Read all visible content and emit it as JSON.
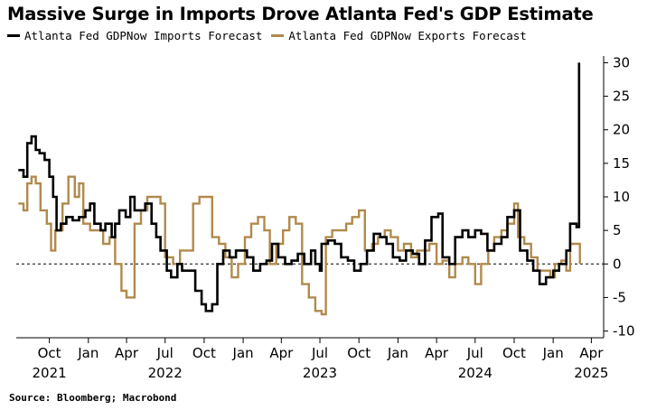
{
  "title": "Massive Surge in Imports Drove Atlanta Fed's GDP Estimate",
  "source": "Source: Bloomberg; Macrobond",
  "chart_data": {
    "type": "line",
    "title": "Massive Surge in Imports Drove Atlanta Fed's GDP Estimate",
    "xlabel": "",
    "ylabel": "",
    "xlim": [
      "2021-07-15",
      "2025-04-30"
    ],
    "ylim": [
      -11,
      31
    ],
    "yticks": [
      30,
      25,
      20,
      15,
      10,
      5,
      0,
      -5,
      -10
    ],
    "ytick_labels": [
      "30",
      "25",
      "20",
      "15",
      "10",
      "5",
      "0",
      "-5",
      "-10"
    ],
    "xticks": [
      {
        "date": "2021-10-01",
        "label": "Oct",
        "year": "2021"
      },
      {
        "date": "2022-01-01",
        "label": "Jan",
        "year": ""
      },
      {
        "date": "2022-04-01",
        "label": "Apr",
        "year": ""
      },
      {
        "date": "2022-07-01",
        "label": "Jul",
        "year": "2022"
      },
      {
        "date": "2022-10-01",
        "label": "Oct",
        "year": ""
      },
      {
        "date": "2023-01-01",
        "label": "Jan",
        "year": ""
      },
      {
        "date": "2023-04-01",
        "label": "Apr",
        "year": ""
      },
      {
        "date": "2023-07-01",
        "label": "Jul",
        "year": "2023"
      },
      {
        "date": "2023-10-01",
        "label": "Oct",
        "year": ""
      },
      {
        "date": "2024-01-01",
        "label": "Jan",
        "year": ""
      },
      {
        "date": "2024-04-01",
        "label": "Apr",
        "year": ""
      },
      {
        "date": "2024-07-01",
        "label": "Jul",
        "year": "2024"
      },
      {
        "date": "2024-10-01",
        "label": "Oct",
        "year": ""
      },
      {
        "date": "2025-01-01",
        "label": "Jan",
        "year": ""
      },
      {
        "date": "2025-04-01",
        "label": "Apr",
        "year": "2025"
      }
    ],
    "reference_line": {
      "y": 0,
      "style": "dashed"
    },
    "axis_side": "right",
    "series": [
      {
        "name": "Atlanta Fed GDPNow Imports Forecast",
        "color": "#000000",
        "points": [
          [
            "2021-07-20",
            14
          ],
          [
            "2021-08-01",
            13
          ],
          [
            "2021-08-10",
            18
          ],
          [
            "2021-08-20",
            19
          ],
          [
            "2021-08-30",
            17
          ],
          [
            "2021-09-08",
            16.5
          ],
          [
            "2021-09-20",
            15.5
          ],
          [
            "2021-10-01",
            13
          ],
          [
            "2021-10-10",
            10
          ],
          [
            "2021-10-18",
            5
          ],
          [
            "2021-10-28",
            6
          ],
          [
            "2021-11-10",
            7
          ],
          [
            "2021-11-25",
            6.5
          ],
          [
            "2021-12-10",
            7
          ],
          [
            "2021-12-25",
            8
          ],
          [
            "2022-01-05",
            9
          ],
          [
            "2022-01-15",
            6
          ],
          [
            "2022-01-30",
            5
          ],
          [
            "2022-02-10",
            6
          ],
          [
            "2022-02-25",
            4
          ],
          [
            "2022-03-05",
            6
          ],
          [
            "2022-03-15",
            8
          ],
          [
            "2022-03-30",
            7
          ],
          [
            "2022-04-10",
            10
          ],
          [
            "2022-04-20",
            8
          ],
          [
            "2022-05-01",
            8
          ],
          [
            "2022-05-15",
            9
          ],
          [
            "2022-05-30",
            6
          ],
          [
            "2022-06-10",
            4
          ],
          [
            "2022-06-20",
            2
          ],
          [
            "2022-06-30",
            2
          ],
          [
            "2022-07-05",
            -1
          ],
          [
            "2022-07-15",
            -2
          ],
          [
            "2022-07-30",
            0
          ],
          [
            "2022-08-10",
            -1
          ],
          [
            "2022-08-25",
            -1
          ],
          [
            "2022-09-10",
            -4
          ],
          [
            "2022-09-25",
            -6
          ],
          [
            "2022-10-05",
            -7
          ],
          [
            "2022-10-20",
            -6
          ],
          [
            "2022-11-01",
            0
          ],
          [
            "2022-11-15",
            2
          ],
          [
            "2022-11-30",
            1
          ],
          [
            "2022-12-15",
            2
          ],
          [
            "2022-12-31",
            2
          ],
          [
            "2023-01-10",
            1
          ],
          [
            "2023-01-25",
            -1
          ],
          [
            "2023-02-10",
            0
          ],
          [
            "2023-02-25",
            0.5
          ],
          [
            "2023-03-10",
            3
          ],
          [
            "2023-03-25",
            1
          ],
          [
            "2023-04-10",
            0
          ],
          [
            "2023-04-25",
            0.5
          ],
          [
            "2023-05-10",
            1.5
          ],
          [
            "2023-05-25",
            0
          ],
          [
            "2023-06-10",
            2
          ],
          [
            "2023-06-20",
            0
          ],
          [
            "2023-07-01",
            -1
          ],
          [
            "2023-07-05",
            3
          ],
          [
            "2023-07-20",
            3.5
          ],
          [
            "2023-08-05",
            3
          ],
          [
            "2023-08-20",
            1
          ],
          [
            "2023-09-05",
            0.5
          ],
          [
            "2023-09-20",
            -1
          ],
          [
            "2023-10-05",
            0
          ],
          [
            "2023-10-20",
            2
          ],
          [
            "2023-11-05",
            4.5
          ],
          [
            "2023-11-20",
            4
          ],
          [
            "2023-12-05",
            3
          ],
          [
            "2023-12-20",
            1
          ],
          [
            "2024-01-05",
            0.5
          ],
          [
            "2024-01-20",
            2
          ],
          [
            "2024-02-05",
            1.5
          ],
          [
            "2024-02-20",
            0
          ],
          [
            "2024-03-05",
            3.5
          ],
          [
            "2024-03-20",
            7
          ],
          [
            "2024-04-05",
            7.5
          ],
          [
            "2024-04-15",
            1
          ],
          [
            "2024-05-01",
            0
          ],
          [
            "2024-05-15",
            4
          ],
          [
            "2024-06-01",
            5
          ],
          [
            "2024-06-15",
            4
          ],
          [
            "2024-07-01",
            5
          ],
          [
            "2024-07-15",
            4.5
          ],
          [
            "2024-07-30",
            2
          ],
          [
            "2024-08-15",
            3
          ],
          [
            "2024-09-01",
            4
          ],
          [
            "2024-09-15",
            7
          ],
          [
            "2024-10-01",
            8
          ],
          [
            "2024-10-15",
            2
          ],
          [
            "2024-11-01",
            0.5
          ],
          [
            "2024-11-15",
            -1
          ],
          [
            "2024-11-30",
            -3
          ],
          [
            "2024-12-15",
            -2
          ],
          [
            "2025-01-01",
            -1
          ],
          [
            "2025-01-15",
            0
          ],
          [
            "2025-02-01",
            2
          ],
          [
            "2025-02-10",
            6
          ],
          [
            "2025-02-25",
            5.5
          ],
          [
            "2025-03-03",
            30
          ]
        ]
      },
      {
        "name": "Atlanta Fed GDPNow Exports Forecast",
        "color": "#b08a4c",
        "points": [
          [
            "2021-07-20",
            9
          ],
          [
            "2021-08-01",
            8
          ],
          [
            "2021-08-10",
            12
          ],
          [
            "2021-08-20",
            13
          ],
          [
            "2021-08-30",
            12
          ],
          [
            "2021-09-10",
            8
          ],
          [
            "2021-09-25",
            6
          ],
          [
            "2021-10-05",
            2
          ],
          [
            "2021-10-15",
            5
          ],
          [
            "2021-11-01",
            9
          ],
          [
            "2021-11-15",
            13
          ],
          [
            "2021-11-30",
            10
          ],
          [
            "2021-12-10",
            12
          ],
          [
            "2021-12-20",
            6
          ],
          [
            "2022-01-05",
            5
          ],
          [
            "2022-01-20",
            5
          ],
          [
            "2022-02-05",
            3
          ],
          [
            "2022-02-20",
            4
          ],
          [
            "2022-03-05",
            0
          ],
          [
            "2022-03-20",
            -4
          ],
          [
            "2022-04-01",
            -5
          ],
          [
            "2022-04-15",
            -5
          ],
          [
            "2022-04-20",
            6
          ],
          [
            "2022-05-05",
            8
          ],
          [
            "2022-05-20",
            10
          ],
          [
            "2022-06-05",
            10
          ],
          [
            "2022-06-20",
            9
          ],
          [
            "2022-07-01",
            1
          ],
          [
            "2022-07-20",
            0
          ],
          [
            "2022-08-05",
            2
          ],
          [
            "2022-08-20",
            2
          ],
          [
            "2022-09-05",
            9
          ],
          [
            "2022-09-20",
            10
          ],
          [
            "2022-10-05",
            10
          ],
          [
            "2022-10-20",
            4
          ],
          [
            "2022-11-05",
            3
          ],
          [
            "2022-11-20",
            1
          ],
          [
            "2022-12-05",
            -2
          ],
          [
            "2022-12-20",
            0
          ],
          [
            "2023-01-05",
            4
          ],
          [
            "2023-01-20",
            6
          ],
          [
            "2023-02-05",
            7
          ],
          [
            "2023-02-20",
            5
          ],
          [
            "2023-03-05",
            0
          ],
          [
            "2023-03-20",
            3
          ],
          [
            "2023-04-05",
            5
          ],
          [
            "2023-04-20",
            7
          ],
          [
            "2023-05-05",
            6
          ],
          [
            "2023-05-20",
            -3
          ],
          [
            "2023-06-05",
            -5
          ],
          [
            "2023-06-20",
            -7
          ],
          [
            "2023-07-05",
            -7.5
          ],
          [
            "2023-07-15",
            4
          ],
          [
            "2023-07-30",
            5
          ],
          [
            "2023-08-15",
            5
          ],
          [
            "2023-09-01",
            6
          ],
          [
            "2023-09-15",
            7
          ],
          [
            "2023-10-01",
            8
          ],
          [
            "2023-10-15",
            2
          ],
          [
            "2023-11-01",
            3
          ],
          [
            "2023-11-15",
            4
          ],
          [
            "2023-12-01",
            5
          ],
          [
            "2023-12-15",
            4
          ],
          [
            "2024-01-01",
            2
          ],
          [
            "2024-01-15",
            3
          ],
          [
            "2024-02-01",
            1
          ],
          [
            "2024-02-15",
            2
          ],
          [
            "2024-03-01",
            2
          ],
          [
            "2024-03-15",
            3
          ],
          [
            "2024-04-01",
            0
          ],
          [
            "2024-04-15",
            0.5
          ],
          [
            "2024-05-01",
            -2
          ],
          [
            "2024-05-15",
            0
          ],
          [
            "2024-06-01",
            1
          ],
          [
            "2024-06-15",
            0
          ],
          [
            "2024-07-01",
            -3
          ],
          [
            "2024-07-15",
            0
          ],
          [
            "2024-08-01",
            2
          ],
          [
            "2024-08-15",
            4
          ],
          [
            "2024-09-01",
            5
          ],
          [
            "2024-09-15",
            6
          ],
          [
            "2024-10-01",
            9
          ],
          [
            "2024-10-10",
            4
          ],
          [
            "2024-10-25",
            3
          ],
          [
            "2024-11-10",
            1
          ],
          [
            "2024-11-25",
            -1
          ],
          [
            "2024-12-10",
            -1
          ],
          [
            "2024-12-25",
            -2
          ],
          [
            "2025-01-05",
            0
          ],
          [
            "2025-01-20",
            0.5
          ],
          [
            "2025-02-01",
            -1
          ],
          [
            "2025-02-10",
            3
          ],
          [
            "2025-02-25",
            3
          ],
          [
            "2025-03-05",
            0
          ]
        ]
      }
    ]
  }
}
